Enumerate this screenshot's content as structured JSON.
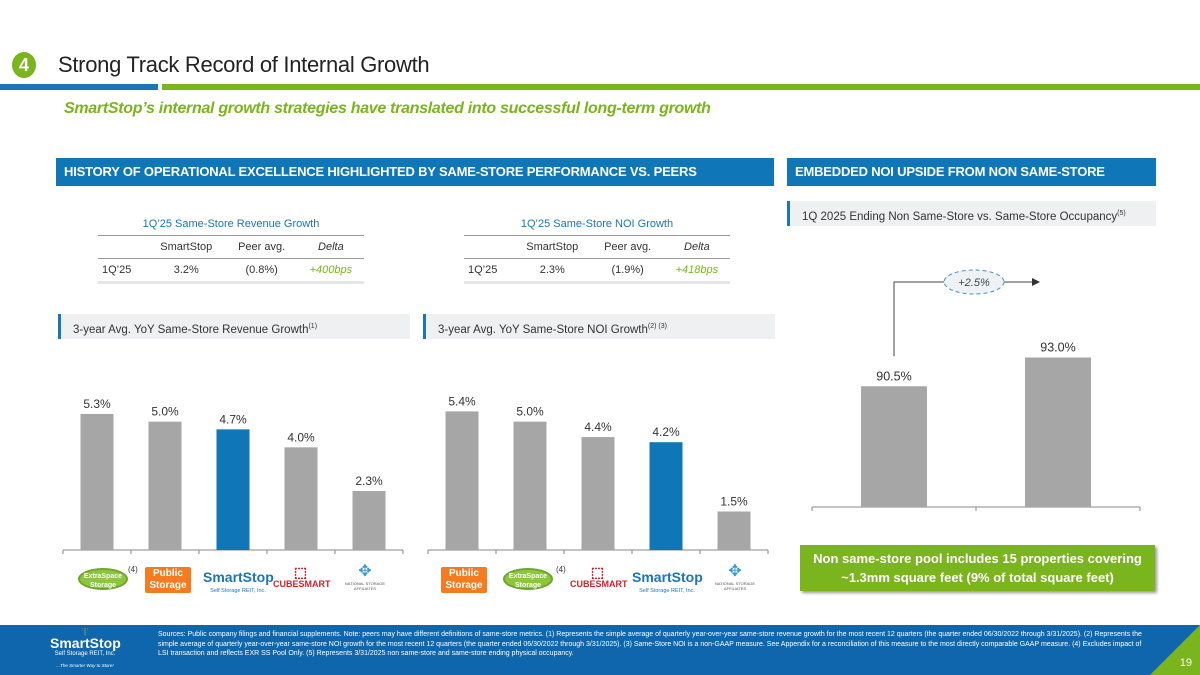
{
  "header": {
    "section_number": "4",
    "title": "Strong Track Record of Internal Growth",
    "subtitle": "SmartStop’s internal growth strategies have translated into successful long-term growth"
  },
  "sections": {
    "left_header": "HISTORY OF OPERATIONAL EXCELLENCE HIGHLIGHTED BY SAME-STORE PERFORMANCE VS. PEERS",
    "right_header": "EMBEDDED NOI UPSIDE FROM NON SAME-STORE ASSETS"
  },
  "tables": [
    {
      "title": "1Q’25 Same-Store Revenue Growth",
      "columns": [
        "",
        "SmartStop",
        "Peer avg.",
        "Delta"
      ],
      "rows": [
        [
          "1Q’25",
          "3.2%",
          "(0.8%)",
          "+400bps"
        ]
      ]
    },
    {
      "title": "1Q’25 Same-Store NOI Growth",
      "columns": [
        "",
        "SmartStop",
        "Peer avg.",
        "Delta"
      ],
      "rows": [
        [
          "1Q’25",
          "2.3%",
          "(1.9%)",
          "+418bps"
        ]
      ]
    }
  ],
  "chart_data": [
    {
      "type": "bar",
      "title": "3-year Avg. YoY Same-Store Revenue Growth",
      "title_footnote": "(1)",
      "categories": [
        "Extra Space Storage",
        "Public Storage",
        "SmartStop",
        "CubeSmart",
        "National Storage Affiliates"
      ],
      "category_footnotes": [
        "(4)",
        "",
        "",
        "",
        ""
      ],
      "values": [
        5.3,
        5.0,
        4.7,
        4.0,
        2.3
      ],
      "labels": [
        "5.3%",
        "5.0%",
        "4.7%",
        "4.0%",
        "2.3%"
      ],
      "highlight": "SmartStop",
      "ylim": [
        0,
        6
      ],
      "grid": false,
      "colors": {
        "default": "#a6a6a6",
        "highlight": "#0f77b8"
      }
    },
    {
      "type": "bar",
      "title": "3-year Avg. YoY Same-Store NOI Growth",
      "title_footnote": "(2) (3)",
      "categories": [
        "Public Storage",
        "Extra Space Storage",
        "CubeSmart",
        "SmartStop",
        "National Storage Affiliates"
      ],
      "category_footnotes": [
        "",
        "(4)",
        "",
        "",
        ""
      ],
      "values": [
        5.4,
        5.0,
        4.4,
        4.2,
        1.5
      ],
      "labels": [
        "5.4%",
        "5.0%",
        "4.4%",
        "4.2%",
        "1.5%"
      ],
      "highlight": "SmartStop",
      "ylim": [
        0,
        6
      ],
      "grid": false,
      "colors": {
        "default": "#a6a6a6",
        "highlight": "#0f77b8"
      }
    },
    {
      "type": "bar",
      "title": "1Q 2025 Ending Non Same-Store vs. Same-Store Occupancy",
      "title_footnote": "(5)",
      "categories": [
        "Non Same-Store",
        "Same-Store"
      ],
      "values": [
        90.5,
        93.0
      ],
      "labels": [
        "90.5%",
        "93.0%"
      ],
      "annotation": "+2.5%",
      "ylim": [
        0,
        100
      ],
      "grid": false,
      "colors": {
        "default": "#a6a6a6"
      }
    }
  ],
  "logos": {
    "extra_space": [
      "ExtraSpace",
      "Storage"
    ],
    "public_storage": [
      "Public",
      "Storage"
    ],
    "smartstop": [
      "SmartStop",
      "Self Storage REIT, Inc."
    ],
    "cubesmart": "CUBESMART",
    "nsa": "NATIONAL STORAGE AFFILIATES"
  },
  "callout": "Non same-store pool includes 15 properties covering ~1.3mm square feet (9% of total square feet)",
  "footer": {
    "brand": "SmartStop",
    "brand_sub": "Self Storage REIT, Inc.",
    "tagline": "...The Smarter Way to Store!",
    "footnotes": "Sources: Public company filings and financial supplements. Note: peers may have different definitions of same-store metrics. (1) Represents the simple average of quarterly year-over-year same-store revenue growth for the most recent 12 quarters (the quarter ended 06/30/2022 through 3/31/2025). (2) Represents the simple average of quarterly year-over-year same-store NOI growth for the most recent 12 quarters (the quarter ended 06/30/2022 through 3/31/2025). (3) Same-Store NOI is a non-GAAP measure. See Appendix for a reconciliation of this measure to the most directly comparable GAAP measure. (4) Excludes impact of LSI transaction and reflects EXR SS Pool Only. (5) Represents 3/31/2025 non same-store and same-store ending physical occupancy.",
    "page_number": "19"
  }
}
